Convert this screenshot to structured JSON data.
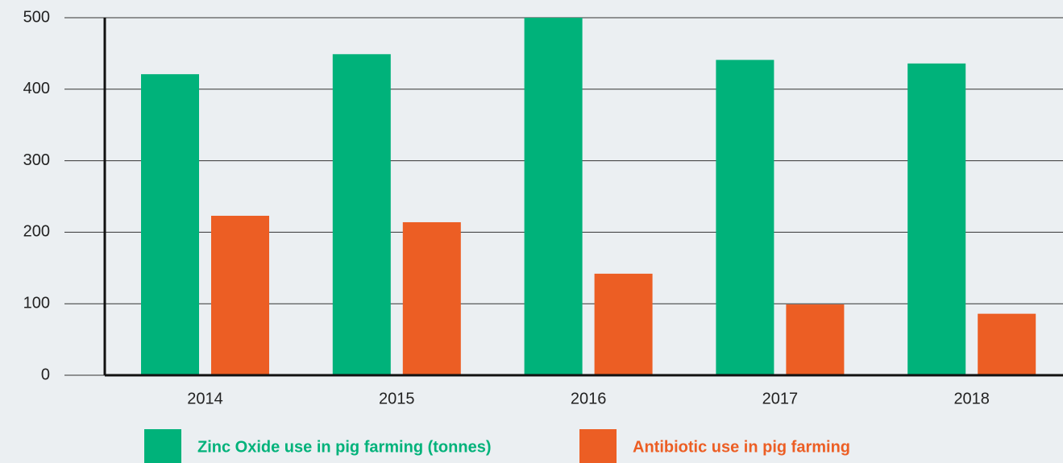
{
  "chart_data": {
    "type": "bar",
    "categories": [
      "2014",
      "2015",
      "2016",
      "2017",
      "2018"
    ],
    "series": [
      {
        "name": "Zinc Oxide use in pig farming (tonnes)",
        "color": "#00b27a",
        "values": [
          421,
          449,
          500,
          441,
          436
        ]
      },
      {
        "name": "Antibiotic use in pig farming",
        "color": "#ec5e24",
        "values": [
          223,
          214,
          142,
          99,
          86
        ]
      }
    ],
    "ylim": [
      0,
      500
    ],
    "yticks": [
      0,
      100,
      200,
      300,
      400,
      500
    ],
    "grid": true,
    "legend": "bottom"
  }
}
